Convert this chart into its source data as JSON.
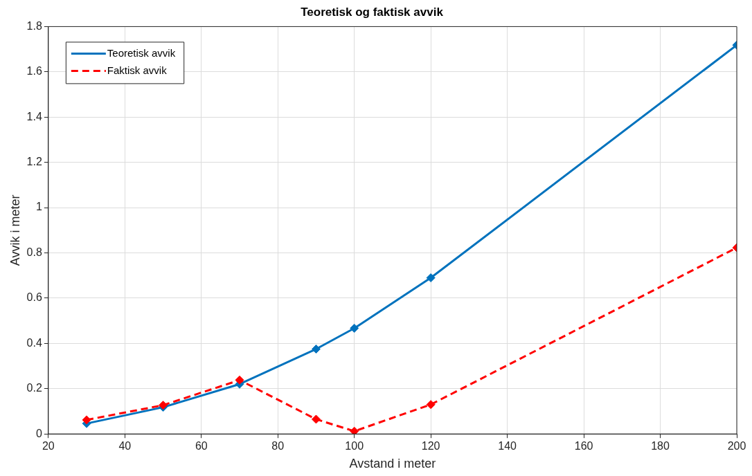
{
  "chart_data": {
    "type": "line",
    "title": "Teoretisk og faktisk avvik",
    "xlabel": "Avstand i meter",
    "ylabel": "Avvik i meter",
    "x": [
      30,
      50,
      70,
      90,
      100,
      120,
      200
    ],
    "series": [
      {
        "name": "Teoretisk avvik",
        "color": "#0072bd",
        "line_style": "solid",
        "values": [
          0.046,
          0.118,
          0.22,
          0.375,
          0.467,
          0.69,
          1.718
        ]
      },
      {
        "name": "Faktisk avvik",
        "color": "#ff0000",
        "line_style": "dashed",
        "values": [
          0.062,
          0.127,
          0.238,
          0.065,
          0.012,
          0.13,
          0.823
        ]
      }
    ],
    "xlim": [
      20,
      200
    ],
    "xticks": [
      20,
      40,
      60,
      80,
      100,
      120,
      140,
      160,
      180,
      200
    ],
    "ylim": [
      0,
      1.8
    ],
    "yticks": [
      0,
      0.2,
      0.4,
      0.6,
      0.8,
      1,
      1.2,
      1.4,
      1.6,
      1.8
    ],
    "grid": true,
    "legend": "top left",
    "marker": "diamond"
  }
}
